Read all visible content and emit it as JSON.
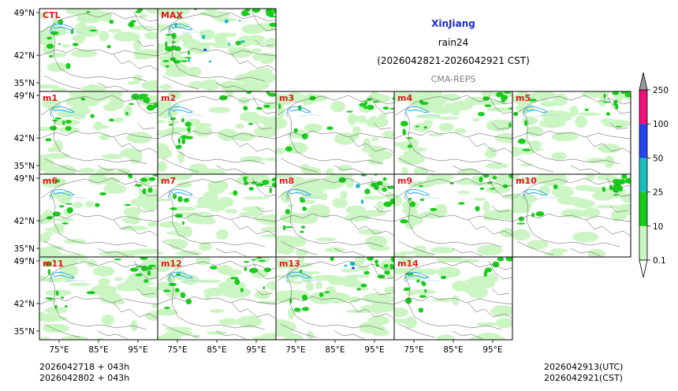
{
  "titles": {
    "region": "XinJiang",
    "variable": "rain24",
    "period": "(2026042821-2026042921 CST)",
    "source": "CMA-REPS",
    "region_color": "#1a2bd6"
  },
  "panels": [
    {
      "id": "CTL",
      "intensity": 0.55
    },
    {
      "id": "MAX",
      "intensity": 1.0
    },
    {
      "id": "m1",
      "intensity": 0.55
    },
    {
      "id": "m2",
      "intensity": 0.55
    },
    {
      "id": "m3",
      "intensity": 0.5
    },
    {
      "id": "m4",
      "intensity": 0.6
    },
    {
      "id": "m5",
      "intensity": 0.5
    },
    {
      "id": "m6",
      "intensity": 0.55
    },
    {
      "id": "m7",
      "intensity": 0.6
    },
    {
      "id": "m8",
      "intensity": 0.7
    },
    {
      "id": "m9",
      "intensity": 0.55
    },
    {
      "id": "m10",
      "intensity": 0.5
    },
    {
      "id": "m11",
      "intensity": 0.55
    },
    {
      "id": "m12",
      "intensity": 0.6
    },
    {
      "id": "m13",
      "intensity": 0.7
    },
    {
      "id": "m14",
      "intensity": 0.5
    }
  ],
  "lat_ticks": [
    "49°N",
    "42°N",
    "35°N"
  ],
  "lon_ticks": [
    "75°E",
    "85°E",
    "95°E"
  ],
  "colorbar": {
    "labels": [
      "0.1",
      "10",
      "25",
      "50",
      "100",
      "250"
    ],
    "colors": [
      "#ccf5c4",
      "#18cc1a",
      "#18bdbd",
      "#2244ee",
      "#ee1177",
      "#999999"
    ]
  },
  "footer": {
    "left_line1": "2026042718  +  043h",
    "left_line2": "2026042802  +  043h",
    "right_line1": "2026042913(UTC)",
    "right_line2": "2026042921(CST)"
  }
}
